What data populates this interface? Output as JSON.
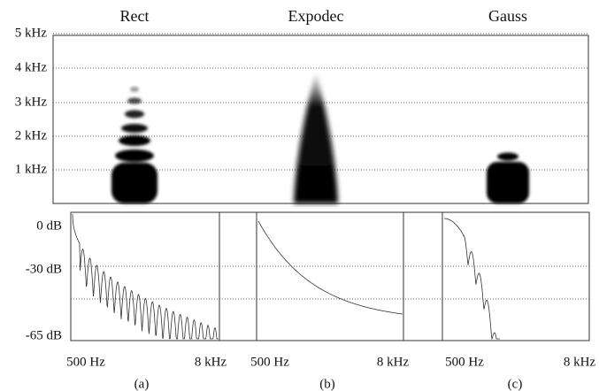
{
  "spectrogram": {
    "titles": [
      "Rect",
      "Expodec",
      "Gauss"
    ],
    "y_labels": [
      "5 kHz",
      "4 kHz",
      "3 kHz",
      "2 kHz",
      "1 kHz"
    ]
  },
  "spectra": {
    "y_labels": [
      "0 dB",
      "-30 dB",
      "-65 dB"
    ],
    "panels": [
      {
        "x_labels": [
          "500 Hz",
          "8 kHz"
        ],
        "caption": "(a)"
      },
      {
        "x_labels": [
          "500 Hz",
          "8 kHz"
        ],
        "caption": "(b)"
      },
      {
        "x_labels": [
          "500 Hz",
          "8 kHz"
        ],
        "caption": "(c)"
      }
    ]
  }
}
